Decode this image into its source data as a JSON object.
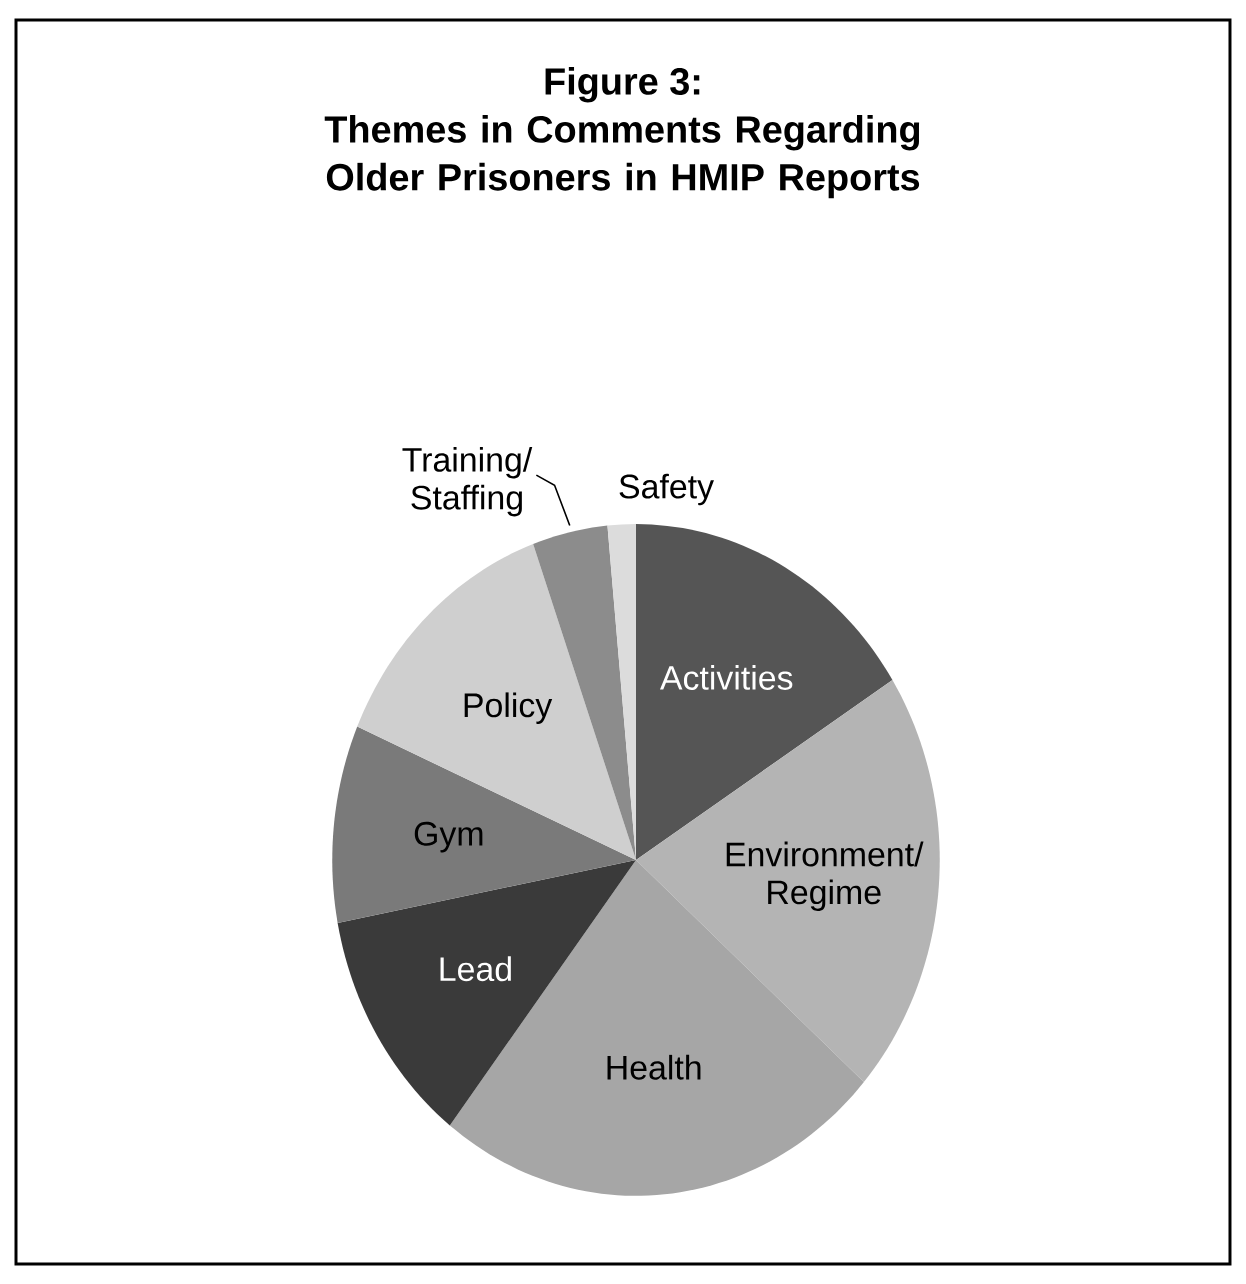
{
  "chart_data": {
    "type": "pie",
    "title": "Figure 3:",
    "subtitle": "Themes in Comments Regarding Older Prisoners in HMIP Reports",
    "categories": [
      "Activities",
      "Environment/ Regime",
      "Health",
      "Lead",
      "Gym",
      "Policy",
      "Training/ Staffing",
      "Safety"
    ],
    "values": [
      16,
      20.5,
      24,
      11.5,
      9.5,
      13,
      4,
      1.5
    ],
    "colors": [
      "#555555",
      "#b4b4b4",
      "#a6a6a6",
      "#3a3a3a",
      "#7a7a7a",
      "#cfcfcf",
      "#8c8c8c",
      "#dcdcdc"
    ]
  }
}
